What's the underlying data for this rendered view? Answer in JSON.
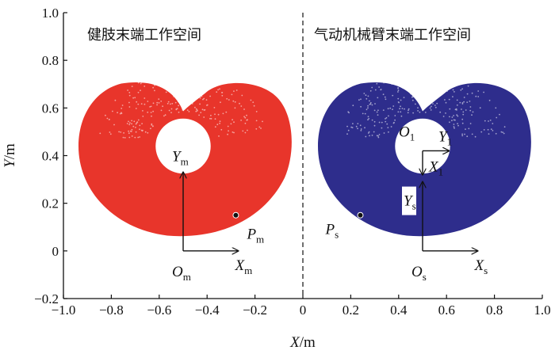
{
  "chart_data": {
    "type": "scatter",
    "title": "",
    "xlabel": "X/m",
    "ylabel": "Y/m",
    "xlim": [
      -1.0,
      1.0
    ],
    "ylim": [
      -0.2,
      1.0
    ],
    "x_ticks": [
      "−1.0",
      "−0.8",
      "−0.6",
      "−0.4",
      "−0.2",
      "0",
      "0.2",
      "0.4",
      "0.6",
      "0.8",
      "1.0"
    ],
    "y_ticks": [
      "−0.2",
      "0",
      "0.2",
      "0.4",
      "0.6",
      "0.8",
      "1.0"
    ],
    "divider_x": 0,
    "panels": [
      {
        "title": "健肢末端工作空间",
        "color": "#e8352b",
        "hole_center": [
          -0.5,
          0.44
        ],
        "hole_radius": 0.115,
        "origin": [
          -0.5,
          0.0
        ],
        "x_axis_end": -0.27,
        "y_axis_top": 0.33,
        "point": [
          -0.28,
          0.15
        ],
        "labels": {
          "origin": "O",
          "origin_sub": "m",
          "x": "X",
          "x_sub": "m",
          "y": "Y",
          "y_sub": "m",
          "p": "P",
          "p_sub": "m"
        }
      },
      {
        "title": "气动机械臂末端工作空间",
        "color": "#2e2d8c",
        "hole_center": [
          0.5,
          0.44
        ],
        "hole_radius": 0.115,
        "origin": [
          0.5,
          0.0
        ],
        "x_axis_end": 0.73,
        "y_axis_top": 0.29,
        "point": [
          0.24,
          0.15
        ],
        "frame1_origin": [
          0.5,
          0.42
        ],
        "frame1_y_end": 0.61,
        "frame1_x_end": 0.32,
        "labels": {
          "origin": "O",
          "origin_sub": "s",
          "x": "X",
          "x_sub": "s",
          "y": "Y",
          "y_sub": "s",
          "p": "P",
          "p_sub": "s",
          "o1": "O",
          "o1_sub": "1",
          "y1": "Y",
          "y1_sub": "1",
          "x1": "X",
          "x1_sub": "1"
        }
      }
    ]
  }
}
